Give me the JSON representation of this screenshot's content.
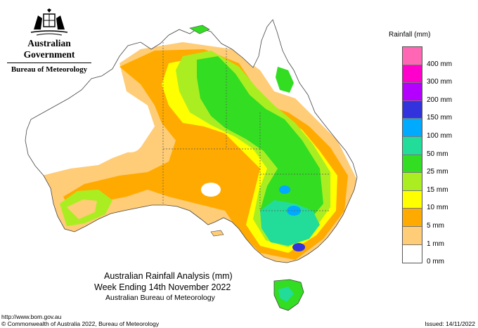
{
  "header": {
    "org_line1": "Australian Government",
    "org_line2": "Bureau of Meteorology"
  },
  "legend": {
    "title": "Rainfall (mm)",
    "items": [
      {
        "label": "",
        "color": "#ff66b3"
      },
      {
        "label": "400 mm",
        "color": "#ff00cc"
      },
      {
        "label": "300 mm",
        "color": "#b300ff"
      },
      {
        "label": "200 mm",
        "color": "#3333dd"
      },
      {
        "label": "150 mm",
        "color": "#00aaff"
      },
      {
        "label": "100 mm",
        "color": "#22dd99"
      },
      {
        "label": "50 mm",
        "color": "#33dd22"
      },
      {
        "label": "25 mm",
        "color": "#aaee22"
      },
      {
        "label": "15 mm",
        "color": "#ffff00"
      },
      {
        "label": "10 mm",
        "color": "#ffaa00"
      },
      {
        "label": "5 mm",
        "color": "#ffcc77"
      },
      {
        "label": "1 mm",
        "color": "#ffffff"
      },
      {
        "label": "0 mm",
        "color": ""
      }
    ]
  },
  "map_title": {
    "line1": "Australian Rainfall Analysis (mm)",
    "line2": "Week Ending 14th November 2022",
    "line3": "Australian Bureau of Meteorology"
  },
  "footer": {
    "url": "http://www.bom.gov.au",
    "copyright": "© Commonwealth of Australia 2022, Bureau of Meteorology",
    "issued": "Issued: 14/11/2022"
  }
}
